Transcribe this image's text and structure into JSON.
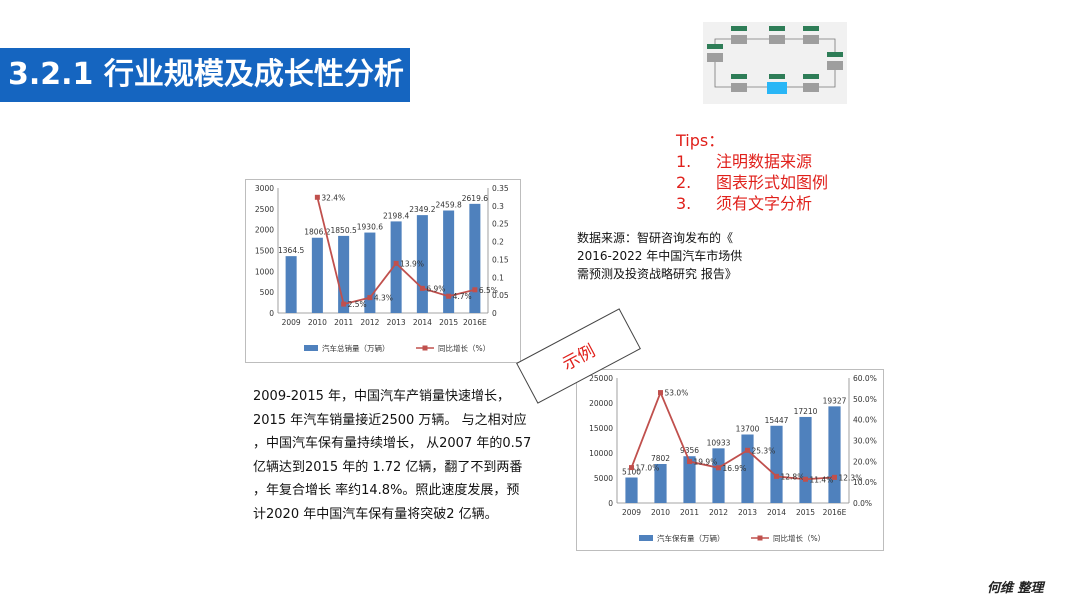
{
  "page": {
    "title": "3.2.1 行业规模及成长性分析",
    "tips": {
      "heading": "Tips：",
      "items": [
        {
          "num": "1.",
          "text": "注明数据来源"
        },
        {
          "num": "2.",
          "text": "图表形式如图例"
        },
        {
          "num": "3.",
          "text": "须有文字分析"
        }
      ]
    },
    "source_lines": [
      "数据来源：智研咨询发布的《",
      "2016-2022 年中国汽车市场供",
      "需预测及投资战略研究 报告》"
    ],
    "example_tag": "示例",
    "analysis_lines": [
      "2009-2015 年，中国汽车产销量快速增长，",
      "2015 年汽车销量接近2500 万辆。 与之相对应",
      "，中国汽车保有量持续增长， 从2007 年的0.57",
      "亿辆达到2015 年的 1.72 亿辆，翻了不到两番",
      "，年复合增长 率约14.8%。照此速度发展，预",
      "计2020 年中国汽车保有量将突破2 亿辆。"
    ],
    "credit": "何维 整理",
    "colors": {
      "accent": "#1565c0",
      "bar": "#4f81bd",
      "line": "#c0504d",
      "tips": "#e0201b"
    }
  },
  "chart_data": [
    {
      "type": "bar",
      "categories": [
        "2009",
        "2010",
        "2011",
        "2012",
        "2013",
        "2014",
        "2015",
        "2016E"
      ],
      "series": [
        {
          "name": "汽车总销量（万辆）",
          "type": "bar",
          "axis": "left",
          "values": [
            1364.5,
            1806.2,
            1850.5,
            1930.6,
            2198.4,
            2349.2,
            2459.8,
            2619.6
          ],
          "labels": [
            "1364.5",
            "1806.2",
            "1850.5",
            "1930.6",
            "2198.4",
            "2349.2",
            "2459.8",
            "2619.6"
          ]
        },
        {
          "name": "同比增长（%）",
          "type": "line",
          "axis": "right",
          "values": [
            null,
            0.324,
            0.025,
            0.043,
            0.139,
            0.069,
            0.047,
            0.065
          ],
          "labels": [
            "",
            "32.4%",
            "2.5%",
            "4.3%",
            "13.9%",
            "6.9%",
            "4.7%",
            "6.5%"
          ]
        }
      ],
      "ylim": [
        0,
        3000
      ],
      "yticks": [
        "0",
        "500",
        "1000",
        "1500",
        "2000",
        "2500",
        "3000"
      ],
      "y2lim": [
        0,
        0.35
      ],
      "y2ticks": [
        "0",
        "0.05",
        "0.1",
        "0.15",
        "0.2",
        "0.25",
        "0.3",
        "0.35"
      ],
      "legend": "bottom"
    },
    {
      "type": "bar",
      "categories": [
        "2009",
        "2010",
        "2011",
        "2012",
        "2013",
        "2014",
        "2015",
        "2016E"
      ],
      "series": [
        {
          "name": "汽车保有量（万辆）",
          "type": "bar",
          "axis": "left",
          "values": [
            5100,
            7802,
            9356,
            10933,
            13700,
            15447,
            17210,
            19327
          ],
          "labels": [
            "5100",
            "7802",
            "9356",
            "10933",
            "13700",
            "15447",
            "17210",
            "19327"
          ]
        },
        {
          "name": "同比增长（%）",
          "type": "line",
          "axis": "right",
          "values": [
            0.17,
            0.53,
            0.199,
            0.169,
            0.253,
            0.128,
            0.114,
            0.123
          ],
          "labels": [
            "17.0%",
            "53.0%",
            "19.9%",
            "16.9%",
            "25.3%",
            "12.8%",
            "11.4%",
            "12.3%"
          ]
        }
      ],
      "ylim": [
        0,
        25000
      ],
      "yticks": [
        "0",
        "5000",
        "10000",
        "15000",
        "20000",
        "25000"
      ],
      "y2lim": [
        0,
        0.6
      ],
      "y2ticks": [
        "0.0%",
        "10.0%",
        "20.0%",
        "30.0%",
        "40.0%",
        "50.0%",
        "60.0%"
      ],
      "legend": "bottom"
    }
  ]
}
